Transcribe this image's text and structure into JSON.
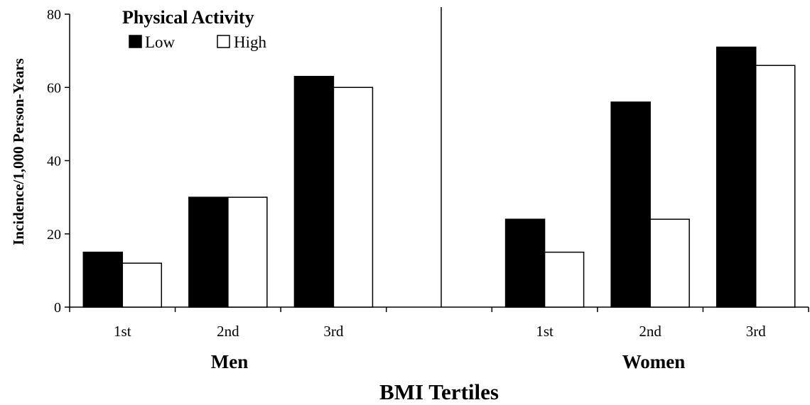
{
  "chart_data": {
    "type": "bar",
    "title": "",
    "xlabel": "BMI Tertiles",
    "ylabel": "Incidence/1,000 Person-Years",
    "ylim": [
      0,
      80
    ],
    "yticks": [
      "0",
      "20",
      "40",
      "60",
      "80"
    ],
    "legend": {
      "title": "Physical Activity",
      "placement": "top-left",
      "items": [
        {
          "name": "Low",
          "color": "#000000"
        },
        {
          "name": "High",
          "color": "#ffffff"
        }
      ]
    },
    "groups": [
      {
        "name": "Men",
        "categories": [
          "1st",
          "2nd",
          "3rd"
        ],
        "series": [
          {
            "name": "Low",
            "values": [
              15,
              30,
              63
            ]
          },
          {
            "name": "High",
            "values": [
              12,
              30,
              60
            ]
          }
        ]
      },
      {
        "name": "Women",
        "categories": [
          "1st",
          "2nd",
          "3rd"
        ],
        "series": [
          {
            "name": "Low",
            "values": [
              24,
              56,
              71
            ]
          },
          {
            "name": "High",
            "values": [
              15,
              24,
              66
            ]
          }
        ]
      }
    ],
    "grid": false,
    "panel_divider": true
  }
}
